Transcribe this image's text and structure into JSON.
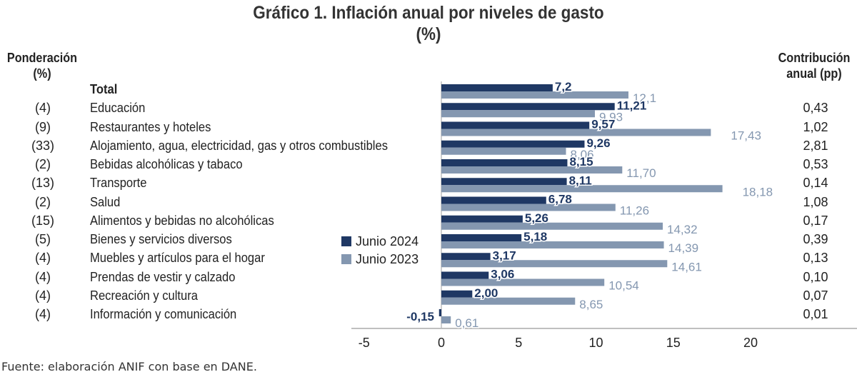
{
  "title": {
    "line1": "Gráfico 1. Inflación anual por niveles de gasto",
    "line2": "(%)"
  },
  "headers": {
    "left_line1": "Ponderación",
    "left_line2": "(%)",
    "right_line1": "Contribución",
    "right_line2": "anual (pp)"
  },
  "source": "Fuente: elaboración ANIF con base en DANE.",
  "colors": {
    "junio_2024": "#1f3864",
    "junio_2023": "#8497b0",
    "axis": "#bfbfbf"
  },
  "legend": [
    {
      "label": "Junio 2024",
      "color": "#1f3864"
    },
    {
      "label": "Junio 2023",
      "color": "#8497b0"
    }
  ],
  "rows": [
    {
      "label": "Total",
      "weight": "",
      "contribution": "",
      "bold": true,
      "v2024_label": "7,2",
      "v2023_label": "12,1"
    },
    {
      "label": "Educación",
      "weight": "(4)",
      "contribution": "0,43",
      "v2024_label": "11,21",
      "v2023_label": "9,93"
    },
    {
      "label": "Restaurantes y hoteles",
      "weight": "(9)",
      "contribution": "1,02",
      "v2024_label": "9,57",
      "v2023_label": "17,43"
    },
    {
      "label": "Alojamiento, agua, electricidad, gas y otros combustibles",
      "weight": "(33)",
      "contribution": "2,81",
      "v2024_label": "9,26",
      "v2023_label": "8,06"
    },
    {
      "label": "Bebidas alcohólicas y tabaco",
      "weight": "(2)",
      "contribution": "0,53",
      "v2024_label": "8,15",
      "v2023_label": "11,70"
    },
    {
      "label": "Transporte",
      "weight": "(13)",
      "contribution": "0,14",
      "v2024_label": "8,11",
      "v2023_label": "18,18"
    },
    {
      "label": "Salud",
      "weight": "(2)",
      "contribution": "1,08",
      "v2024_label": "6,78",
      "v2023_label": "11,26"
    },
    {
      "label": "Alimentos y bebidas no alcohólicas",
      "weight": "(15)",
      "contribution": "0,17",
      "v2024_label": "5,26",
      "v2023_label": "14,32"
    },
    {
      "label": "Bienes y servicios diversos",
      "weight": "(5)",
      "contribution": "0,39",
      "v2024_label": "5,18",
      "v2023_label": "14,39"
    },
    {
      "label": "Muebles y artículos para el hogar",
      "weight": "(4)",
      "contribution": "0,13",
      "v2024_label": "3,17",
      "v2023_label": "14,61"
    },
    {
      "label": "Prendas de vestir y calzado",
      "weight": "(4)",
      "contribution": "0,10",
      "v2024_label": "3,06",
      "v2023_label": "10,54"
    },
    {
      "label": "Recreación y cultura",
      "weight": "(4)",
      "contribution": "0,07",
      "v2024_label": "2,00",
      "v2023_label": "8,65"
    },
    {
      "label": "Información y comunicación",
      "weight": "(4)",
      "contribution": "0,01",
      "v2024_label": "-0,15",
      "v2023_label": "0,61"
    }
  ],
  "chart_data": {
    "type": "bar",
    "orientation": "horizontal",
    "title": "Gráfico 1. Inflación anual por niveles de gasto (%)",
    "xlabel": "",
    "ylabel": "",
    "categories": [
      "Total",
      "Educación",
      "Restaurantes y hoteles",
      "Alojamiento, agua, electricidad, gas y otros combustibles",
      "Bebidas alcohólicas y tabaco",
      "Transporte",
      "Salud",
      "Alimentos y bebidas no alcohólicas",
      "Bienes y servicios diversos",
      "Muebles y artículos para el hogar",
      "Prendas de vestir y calzado",
      "Recreación y cultura",
      "Información y comunicación"
    ],
    "series": [
      {
        "name": "Junio 2024",
        "color": "#1f3864",
        "values": [
          7.2,
          11.21,
          9.57,
          9.26,
          8.15,
          8.11,
          6.78,
          5.26,
          5.18,
          3.17,
          3.06,
          2.0,
          -0.15
        ]
      },
      {
        "name": "Junio 2023",
        "color": "#8497b0",
        "values": [
          12.1,
          9.93,
          17.43,
          8.06,
          11.7,
          18.18,
          11.26,
          14.32,
          14.39,
          14.61,
          10.54,
          8.65,
          0.61
        ]
      }
    ],
    "xlim": [
      -5,
      25
    ],
    "xticks": [
      -5,
      0,
      5,
      10,
      15,
      20
    ],
    "xtick_labels": [
      "-5",
      "0",
      "5",
      "10",
      "15",
      "20"
    ],
    "grid": false,
    "legend_position": "center-left",
    "data_labels": true
  }
}
